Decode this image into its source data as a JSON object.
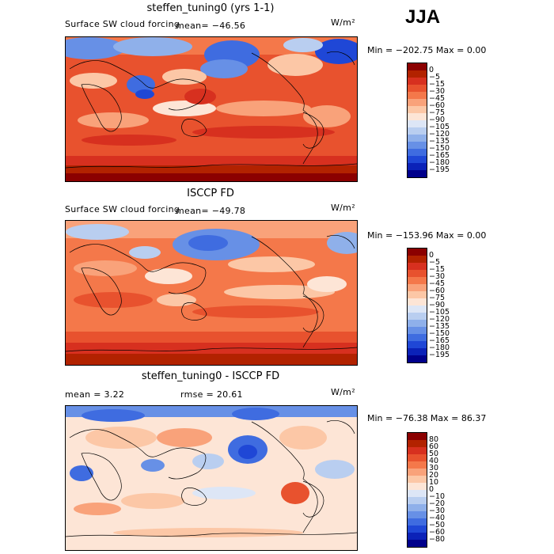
{
  "season": "JJA",
  "panels": [
    {
      "title": "steffen_tuning0 (yrs 1-1)",
      "left_label": "Surface SW cloud forcing",
      "mean_text": "mean=  −46.56",
      "units": "W/m²",
      "minmax": "Min = −202.75 Max =    0.00",
      "colorbar": {
        "labels": [
          "0",
          "−5",
          "−15",
          "−30",
          "−45",
          "−60",
          "−75",
          "−90",
          "−105",
          "−120",
          "−135",
          "−150",
          "−165",
          "−180",
          "−195"
        ],
        "colors": [
          "#8b0000",
          "#b22200",
          "#d7301f",
          "#e8522e",
          "#f4784a",
          "#f9a27a",
          "#fcc7a6",
          "#fde5d6",
          "#dde6f6",
          "#b9cef0",
          "#8fb0ea",
          "#6790e6",
          "#3f6ce0",
          "#1f47d6",
          "#0b22b8",
          "#00008b"
        ]
      }
    },
    {
      "title": "ISCCP FD",
      "left_label": "Surface SW cloud forcing",
      "mean_text": "mean=  −49.78",
      "units": "W/m²",
      "minmax": "Min = −153.96 Max =    0.00",
      "colorbar": {
        "labels": [
          "0",
          "−5",
          "−15",
          "−30",
          "−45",
          "−60",
          "−75",
          "−90",
          "−105",
          "−120",
          "−135",
          "−150",
          "−165",
          "−180",
          "−195"
        ],
        "colors": [
          "#8b0000",
          "#b22200",
          "#d7301f",
          "#e8522e",
          "#f4784a",
          "#f9a27a",
          "#fcc7a6",
          "#fde5d6",
          "#dde6f6",
          "#b9cef0",
          "#8fb0ea",
          "#6790e6",
          "#3f6ce0",
          "#1f47d6",
          "#0b22b8",
          "#00008b"
        ]
      }
    },
    {
      "title": "steffen_tuning0 - ISCCP FD",
      "left_label": "mean =    3.22",
      "mean_text": "rmse =  20.61",
      "units": "W/m²",
      "minmax": "Min = −76.38 Max =  86.37",
      "colorbar": {
        "labels": [
          "80",
          "60",
          "50",
          "40",
          "30",
          "20",
          "10",
          "0",
          "−10",
          "−20",
          "−30",
          "−40",
          "−50",
          "−60",
          "−80"
        ],
        "colors": [
          "#8b0000",
          "#b22200",
          "#d7301f",
          "#e8522e",
          "#f4784a",
          "#f9a27a",
          "#fcc7a6",
          "#fde5d6",
          "#dde6f6",
          "#b9cef0",
          "#8fb0ea",
          "#6790e6",
          "#3f6ce0",
          "#1f47d6",
          "#0b22b8",
          "#00008b"
        ]
      }
    }
  ]
}
